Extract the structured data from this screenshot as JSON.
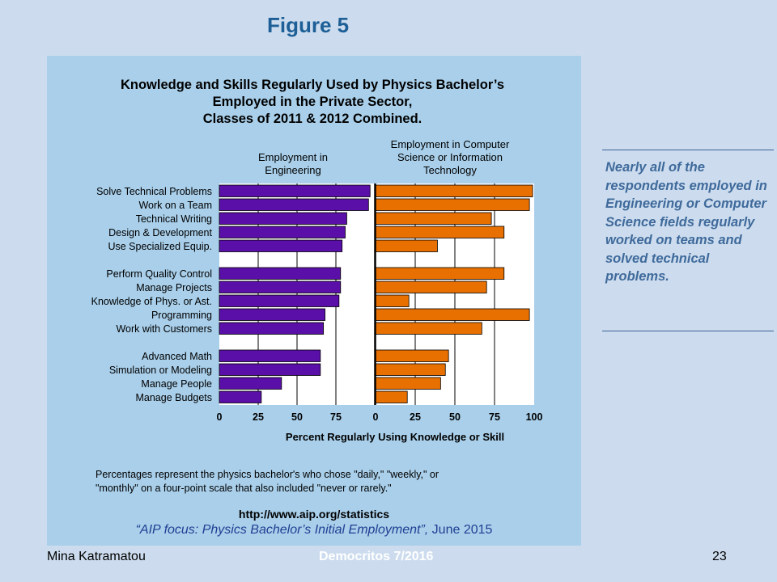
{
  "slide": {
    "figure_title": "Figure 5",
    "side_note": "Nearly all of the respondents employed in Engineering or Computer Science fields regularly worked on teams and solved technical problems.",
    "footer_left": "Mina Katramatou",
    "footer_center": "Democritos 7/2016",
    "footer_page": "23",
    "footnote_line1": "Percentages represent the physics bachelor's who chose \"daily,\" \"weekly,\" or",
    "footnote_line2": "\"monthly\" on a four-point scale that also included \"never or rarely.\"",
    "source_url": "http://www.aip.org/statistics",
    "citation_title": "“AIP focus: Physics Bachelor’s Initial Employment”,",
    "citation_date": "June 2015"
  },
  "chart_data": {
    "type": "bar",
    "orientation": "horizontal",
    "title_lines": [
      "Knowledge and Skills Regularly Used by Physics Bachelor’s",
      "Employed in the Private Sector,",
      "Classes of 2011 & 2012 Combined."
    ],
    "xlabel": "Percent Regularly Using Knowledge or Skill",
    "xlim": [
      0,
      100
    ],
    "xticks": [
      "0",
      "25",
      "50",
      "75",
      "100"
    ],
    "grid": true,
    "colors": {
      "engineering": "#5a0fa8",
      "computer": "#e87000"
    },
    "categories": [
      "Solve Technical Problems",
      "Work on a Team",
      "Technical Writing",
      "Design & Development",
      "Use Specialized Equip.",
      "Perform Quality Control",
      "Manage Projects",
      "Knowledge of Phys. or Ast.",
      "Programming",
      "Work with Customers",
      "Advanced Math",
      "Simulation or Modeling",
      "Manage People",
      "Manage Budgets"
    ],
    "groups": [
      5,
      5,
      4
    ],
    "series": [
      {
        "name": "Employment in Engineering",
        "values": [
          97,
          96,
          82,
          81,
          79,
          78,
          78,
          77,
          68,
          67,
          65,
          65,
          40,
          27
        ]
      },
      {
        "name": "Employment in Computer Science or Information Technology",
        "values": [
          99,
          97,
          73,
          81,
          39,
          81,
          70,
          21,
          97,
          67,
          46,
          44,
          41,
          20
        ]
      }
    ]
  }
}
